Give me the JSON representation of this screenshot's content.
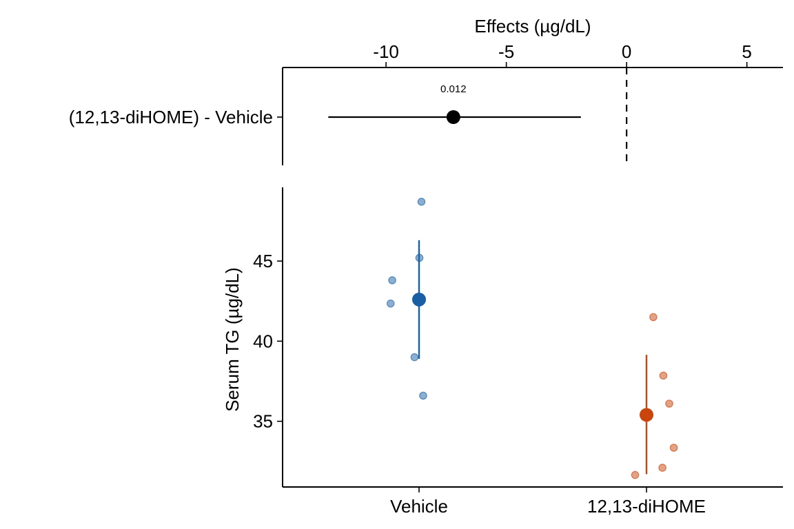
{
  "chart_data": [
    {
      "type": "forest",
      "xlabel": "Effects (µg/dL)",
      "xlim": [
        -14.3,
        6.5
      ],
      "xticks": [
        -10,
        -5,
        0,
        5
      ],
      "xtick_labels": [
        "-10",
        "-5",
        "0",
        "5"
      ],
      "zero_line": true,
      "rows": [
        {
          "label": "(12,13-diHOME) - Vehicle",
          "estimate": -7.2,
          "ci": [
            -12.4,
            -1.9
          ],
          "p_label": "0.012"
        }
      ]
    },
    {
      "type": "scatter",
      "ylabel": "Serum TG (µg/dL)",
      "ylim": [
        30.9,
        49.6
      ],
      "yticks": [
        35,
        40,
        45
      ],
      "ytick_labels": [
        "35",
        "40",
        "45"
      ],
      "categories": [
        "Vehicle",
        "12,13-diHOME"
      ],
      "groups": [
        {
          "category": "Vehicle",
          "color": "#1a5fa3",
          "mean": 42.6,
          "sd_range": [
            38.9,
            46.3
          ],
          "points": [
            {
              "jitter": 0.0105,
              "y": 48.7
            },
            {
              "jitter": 0.0015,
              "y": 45.2
            },
            {
              "jitter": -0.118,
              "y": 43.8
            },
            {
              "jitter": -0.125,
              "y": 42.35
            },
            {
              "jitter": -0.02,
              "y": 39.0
            },
            {
              "jitter": 0.018,
              "y": 36.6
            }
          ]
        },
        {
          "category": "12,13-diHOME",
          "color": "#c9450c",
          "mean": 35.4,
          "sd_range": [
            31.7,
            39.15
          ],
          "points": [
            {
              "jitter": 0.03,
              "y": 41.5
            },
            {
              "jitter": 0.074,
              "y": 37.85
            },
            {
              "jitter": 0.1,
              "y": 36.1
            },
            {
              "jitter": 0.12,
              "y": 33.35
            },
            {
              "jitter": 0.07,
              "y": 32.1
            },
            {
              "jitter": -0.05,
              "y": 31.65
            }
          ]
        }
      ]
    }
  ]
}
